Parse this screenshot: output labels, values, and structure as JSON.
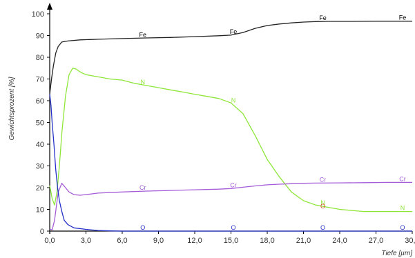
{
  "chart_data": {
    "type": "line",
    "xlabel": "Tiefe [µm]",
    "ylabel": "Gewichtsprozent [%]",
    "xlim": [
      0,
      30
    ],
    "ylim": [
      0,
      100
    ],
    "x_ticks": [
      "0,0",
      "3,0",
      "6,0",
      "9,0",
      "12,0",
      "15,0",
      "18,0",
      "21,0",
      "24,0",
      "27,0",
      "30,0"
    ],
    "y_ticks": [
      "0",
      "10",
      "20",
      "30",
      "40",
      "50",
      "60",
      "70",
      "80",
      "90",
      "100"
    ],
    "grid": false,
    "series": [
      {
        "name": "Fe",
        "color": "#222222",
        "points": [
          [
            0.0,
            63
          ],
          [
            0.15,
            70
          ],
          [
            0.3,
            76
          ],
          [
            0.5,
            82
          ],
          [
            0.7,
            85
          ],
          [
            1.0,
            87
          ],
          [
            1.5,
            87.5
          ],
          [
            2.5,
            88
          ],
          [
            4,
            88.3
          ],
          [
            6,
            88.6
          ],
          [
            8,
            88.9
          ],
          [
            10,
            89.1
          ],
          [
            12,
            89.5
          ],
          [
            14,
            89.9
          ],
          [
            15,
            90.2
          ],
          [
            16,
            91.4
          ],
          [
            17,
            93.3
          ],
          [
            18,
            94.6
          ],
          [
            19,
            95.3
          ],
          [
            20,
            95.8
          ],
          [
            21,
            96.2
          ],
          [
            22,
            96.4
          ],
          [
            23,
            96.5
          ],
          [
            25,
            96.5
          ],
          [
            27,
            96.6
          ],
          [
            30,
            96.6
          ]
        ],
        "label_positions": [
          [
            7.7,
            88.8
          ],
          [
            15.2,
            90.2
          ],
          [
            22.6,
            96.5
          ],
          [
            29.2,
            96.6
          ]
        ]
      },
      {
        "name": "N",
        "color": "#8EE63A",
        "points": [
          [
            0.0,
            21
          ],
          [
            0.2,
            15
          ],
          [
            0.4,
            12
          ],
          [
            0.6,
            18
          ],
          [
            0.8,
            30
          ],
          [
            1.0,
            45
          ],
          [
            1.3,
            62
          ],
          [
            1.6,
            72
          ],
          [
            1.9,
            75
          ],
          [
            2.2,
            74.5
          ],
          [
            2.6,
            73
          ],
          [
            3,
            72
          ],
          [
            4,
            71
          ],
          [
            5,
            70
          ],
          [
            6,
            69.5
          ],
          [
            7,
            68
          ],
          [
            8,
            67
          ],
          [
            9,
            66
          ],
          [
            10,
            65
          ],
          [
            11,
            64
          ],
          [
            12,
            63
          ],
          [
            13,
            62
          ],
          [
            14,
            61
          ],
          [
            15,
            59
          ],
          [
            16,
            54
          ],
          [
            17,
            44
          ],
          [
            18,
            33
          ],
          [
            19,
            25
          ],
          [
            20,
            18
          ],
          [
            21,
            14
          ],
          [
            22,
            12
          ],
          [
            23,
            11
          ],
          [
            24,
            10
          ],
          [
            25,
            9.5
          ],
          [
            26,
            9
          ],
          [
            27,
            9
          ],
          [
            28,
            9
          ],
          [
            29,
            9
          ],
          [
            30,
            9
          ]
        ],
        "label_positions": [
          [
            7.7,
            67
          ],
          [
            15.2,
            58.6
          ],
          [
            22.6,
            11.5
          ],
          [
            29.2,
            9
          ]
        ]
      },
      {
        "name": "Cr",
        "color": "#A45BD8",
        "points": [
          [
            0.0,
            1
          ],
          [
            0.2,
            0.5
          ],
          [
            0.4,
            5
          ],
          [
            0.7,
            18
          ],
          [
            1.0,
            22
          ],
          [
            1.3,
            20
          ],
          [
            1.6,
            18
          ],
          [
            2.0,
            16.8
          ],
          [
            2.5,
            16.5
          ],
          [
            3,
            16.8
          ],
          [
            4,
            17.5
          ],
          [
            6,
            18
          ],
          [
            8,
            18.4
          ],
          [
            10,
            18.7
          ],
          [
            12,
            19
          ],
          [
            14,
            19.3
          ],
          [
            15,
            19.6
          ],
          [
            16,
            20.2
          ],
          [
            17,
            20.8
          ],
          [
            18,
            21.3
          ],
          [
            19,
            21.6
          ],
          [
            20,
            21.8
          ],
          [
            21,
            22
          ],
          [
            22,
            22.1
          ],
          [
            24,
            22.2
          ],
          [
            26,
            22.3
          ],
          [
            28,
            22.4
          ],
          [
            30,
            22.4
          ]
        ],
        "label_positions": [
          [
            7.7,
            18.4
          ],
          [
            15.2,
            19.6
          ],
          [
            22.6,
            22.1
          ],
          [
            29.2,
            22.4
          ]
        ]
      },
      {
        "name": "O",
        "color": "#2430C8",
        "points": [
          [
            0.0,
            63
          ],
          [
            0.1,
            58
          ],
          [
            0.2,
            50
          ],
          [
            0.35,
            40
          ],
          [
            0.5,
            28
          ],
          [
            0.65,
            20
          ],
          [
            0.8,
            14
          ],
          [
            1.0,
            9
          ],
          [
            1.2,
            5
          ],
          [
            1.5,
            3
          ],
          [
            2.0,
            1.5
          ],
          [
            3.0,
            0.8
          ],
          [
            4.0,
            0.3
          ],
          [
            5.0,
            0.1
          ],
          [
            6.0,
            0
          ],
          [
            8,
            0
          ],
          [
            12,
            0
          ],
          [
            16,
            0
          ],
          [
            20,
            0
          ],
          [
            24,
            0
          ],
          [
            28,
            0
          ],
          [
            30,
            0
          ]
        ],
        "label_positions": [
          [
            7.7,
            0
          ],
          [
            15.2,
            0
          ],
          [
            22.6,
            0
          ],
          [
            29.2,
            0
          ]
        ]
      }
    ],
    "extra_marker": {
      "name": "O",
      "color": "#D04020",
      "x": 22.6,
      "y": 11.5
    }
  }
}
